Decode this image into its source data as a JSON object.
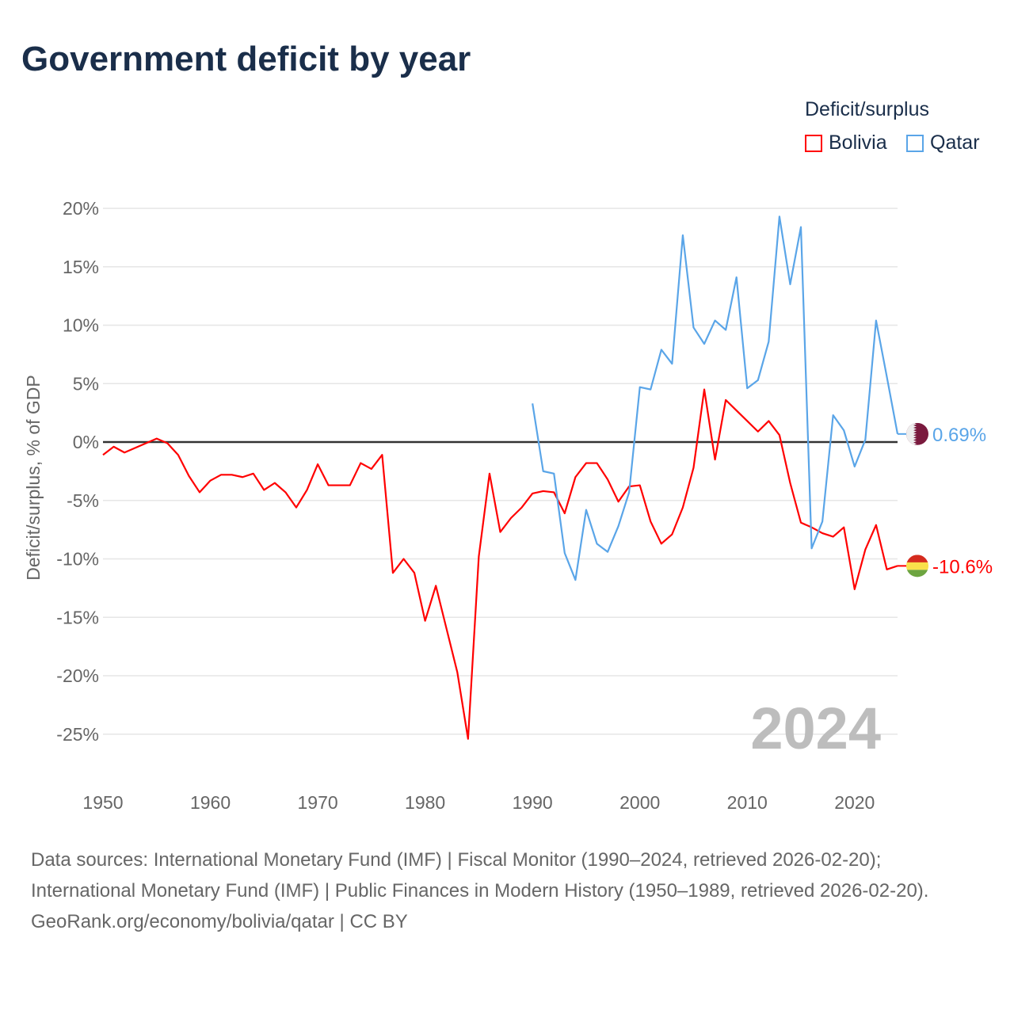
{
  "title": "Government deficit by year",
  "legend": {
    "title": "Deficit/surplus",
    "items": [
      {
        "name": "Bolivia",
        "color": "#ff0000"
      },
      {
        "name": "Qatar",
        "color": "#5aa5e8"
      }
    ]
  },
  "year_label": "2024",
  "footer": {
    "sources": "Data sources: International Monetary Fund (IMF) | Fiscal Monitor (1990–2024, retrieved 2026-02-20); International Monetary Fund (IMF) | Public Finances in Modern History (1950–1989, retrieved 2026-02-20).",
    "credit": "GeoRank.org/economy/bolivia/qatar | CC BY"
  },
  "chart_data": {
    "type": "line",
    "title": "Government deficit by year",
    "xlabel": "",
    "ylabel": "Deficit/surplus, % of GDP",
    "xlim": [
      1950,
      2024
    ],
    "ylim": [
      -27,
      20
    ],
    "x_ticks": [
      1950,
      1960,
      1970,
      1980,
      1990,
      2000,
      2010,
      2020
    ],
    "y_ticks": [
      20,
      15,
      10,
      5,
      0,
      -5,
      -10,
      -15,
      -20,
      -25
    ],
    "y_tick_labels": [
      "20%",
      "15%",
      "10%",
      "5%",
      "0%",
      "-5%",
      "-10%",
      "-15%",
      "-20%",
      "-25%"
    ],
    "grid": true,
    "legend_position": "top-right",
    "series": [
      {
        "name": "Bolivia",
        "color": "#ff0000",
        "start_year": 1950,
        "end_label": "-10.6%",
        "values": [
          -1.1,
          -0.4,
          -0.9,
          -0.5,
          -0.1,
          0.3,
          -0.1,
          -1.1,
          -2.9,
          -4.3,
          -3.3,
          -2.8,
          -2.8,
          -3.0,
          -2.7,
          -4.1,
          -3.5,
          -4.3,
          -5.6,
          -4.1,
          -1.9,
          -3.7,
          -3.7,
          -3.7,
          -1.8,
          -2.3,
          -1.1,
          -11.2,
          -10.0,
          -11.2,
          -15.3,
          -12.3,
          -16.0,
          -19.7,
          -25.4,
          -9.8,
          -2.7,
          -7.7,
          -6.5,
          -5.6,
          -4.4,
          -4.2,
          -4.3,
          -6.1,
          -3.0,
          -1.8,
          -1.8,
          -3.2,
          -5.1,
          -3.8,
          -3.7,
          -6.8,
          -8.7,
          -7.9,
          -5.6,
          -2.2,
          4.5,
          -1.5,
          3.6,
          2.7,
          1.8,
          0.9,
          1.8,
          0.6,
          -3.5,
          -6.9,
          -7.3,
          -7.8,
          -8.1,
          -7.3,
          -12.6,
          -9.2,
          -7.1,
          -10.9,
          -10.6
        ]
      },
      {
        "name": "Qatar",
        "color": "#5aa5e8",
        "start_year": 1990,
        "end_label": "0.69%",
        "values": [
          3.3,
          -2.5,
          -2.7,
          -9.5,
          -11.8,
          -5.8,
          -8.7,
          -9.4,
          -7.2,
          -4.3,
          4.7,
          4.5,
          7.9,
          6.7,
          17.7,
          9.8,
          8.4,
          10.4,
          9.6,
          14.1,
          4.6,
          5.3,
          8.6,
          19.3,
          13.5,
          18.4,
          -9.1,
          -6.8,
          2.3,
          1.0,
          -2.1,
          0.2,
          10.4,
          5.6,
          0.69
        ]
      }
    ]
  }
}
